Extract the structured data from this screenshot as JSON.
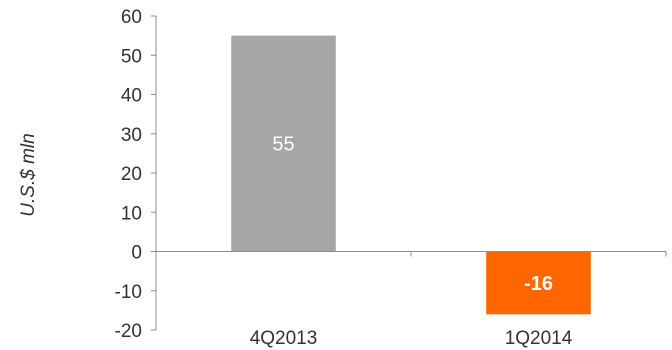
{
  "chart_data": {
    "type": "bar",
    "title": "",
    "xlabel": "",
    "ylabel": "U.S.$ mln",
    "categories": [
      "4Q2013",
      "1Q2014"
    ],
    "values": [
      55,
      -16
    ],
    "data_labels": [
      "55",
      "-16"
    ],
    "ylim": [
      -20,
      60
    ],
    "yticks": [
      -20,
      -10,
      0,
      10,
      20,
      30,
      40,
      50,
      60
    ],
    "grid": false,
    "legend": "none",
    "bar_colors": [
      "#a6a6a6",
      "#ff6600"
    ],
    "label_colors": [
      "#ffffff",
      "#ffffff"
    ],
    "label_bold": [
      false,
      true
    ]
  }
}
